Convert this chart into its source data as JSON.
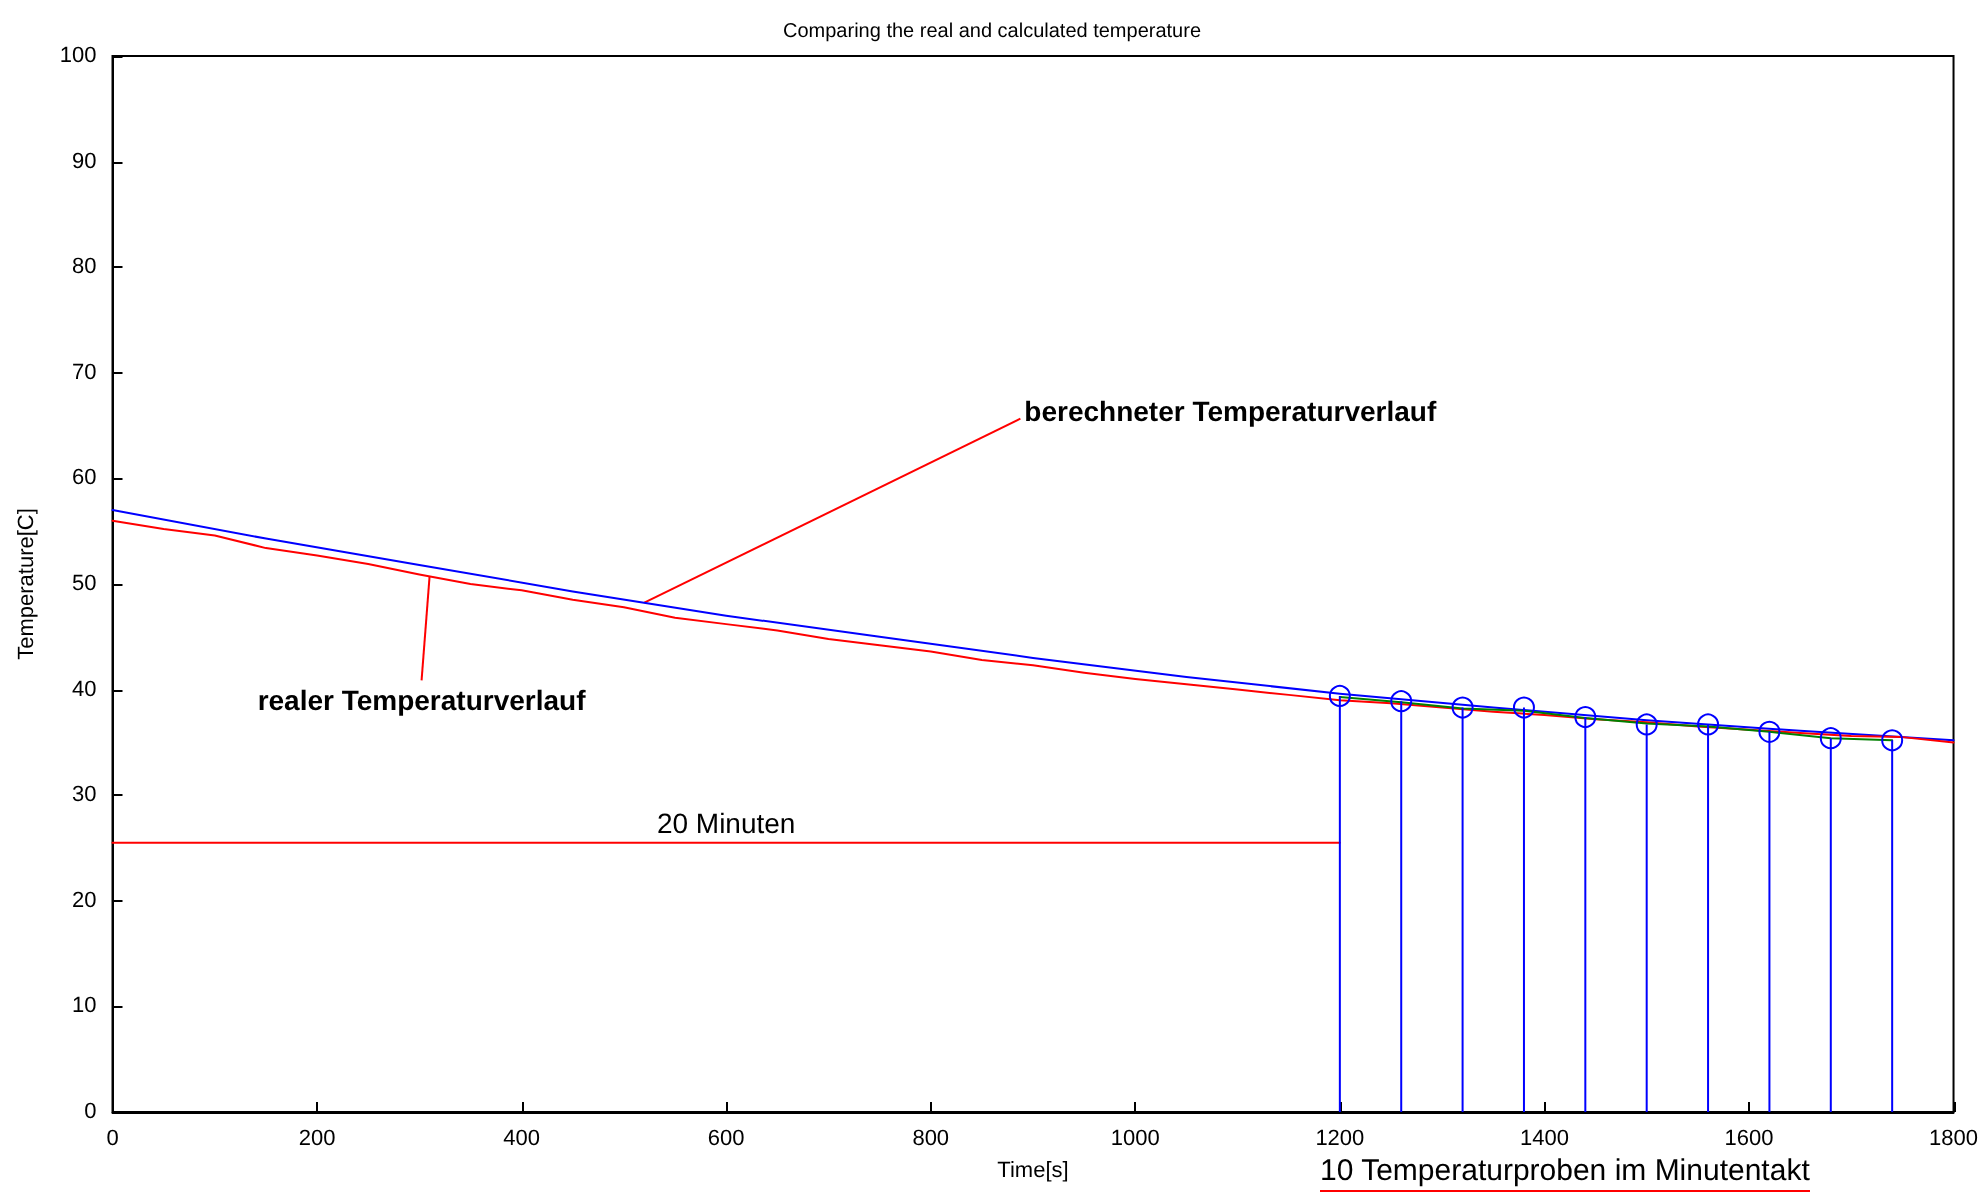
{
  "chart_data": {
    "type": "line",
    "title": "Comparing the real and calculated temperature",
    "xlabel": "Time[s]",
    "ylabel": "Temperature[C]",
    "xlim": [
      0,
      1800
    ],
    "xticks": [
      0,
      200,
      400,
      600,
      800,
      1000,
      1200,
      1400,
      1600,
      1800
    ],
    "ylim": [
      0,
      100
    ],
    "yticks": [
      0,
      10,
      20,
      30,
      40,
      50,
      60,
      70,
      80,
      90,
      100
    ],
    "grid": false,
    "legend": false,
    "marker": "none",
    "series": [
      {
        "name": "berechneter Temperaturverlauf",
        "color": "#0000ff",
        "x": [
          0,
          150,
          300,
          450,
          600,
          750,
          900,
          1050,
          1200,
          1350,
          1500,
          1650,
          1800
        ],
        "values": [
          57,
          54.3,
          51.8,
          49.3,
          47.0,
          45.0,
          43.0,
          41.2,
          39.6,
          38.3,
          37.1,
          36.1,
          35.2
        ]
      },
      {
        "name": "realer Temperaturverlauf",
        "color": "#ff0000",
        "x": [
          0,
          50,
          100,
          150,
          200,
          250,
          300,
          350,
          400,
          450,
          500,
          550,
          600,
          650,
          700,
          750,
          800,
          850,
          900,
          950,
          1000,
          1050,
          1100,
          1150,
          1200,
          1250,
          1300,
          1350,
          1400,
          1450,
          1500,
          1550,
          1600,
          1650,
          1700,
          1750,
          1800
        ],
        "values": [
          56.0,
          55.2,
          54.6,
          53.4,
          52.7,
          51.9,
          50.9,
          50.0,
          49.4,
          48.5,
          47.8,
          46.8,
          46.2,
          45.6,
          44.8,
          44.2,
          43.6,
          42.8,
          42.3,
          41.6,
          41.0,
          40.5,
          40.0,
          39.5,
          39.0,
          38.7,
          38.3,
          37.9,
          37.6,
          37.2,
          36.9,
          36.5,
          36.2,
          35.9,
          35.6,
          35.5,
          35.0
        ]
      },
      {
        "color": "#008000",
        "x": [
          1200,
          1260,
          1320,
          1380,
          1440,
          1500,
          1560,
          1620,
          1680,
          1740
        ],
        "values": [
          39.3,
          38.8,
          38.2,
          38.0,
          37.3,
          36.8,
          36.5,
          36.0,
          35.4,
          35.2
        ]
      },
      {
        "type": "lollipop",
        "color": "#0000ff",
        "marker": "circle",
        "x": [
          1200,
          1260,
          1320,
          1380,
          1440,
          1500,
          1560,
          1620,
          1680,
          1740
        ],
        "values": [
          39.4,
          38.9,
          38.3,
          38.3,
          37.4,
          36.7,
          36.7,
          36.0,
          35.4,
          35.2
        ]
      },
      {
        "name": "20 Minuten",
        "color": "#ff0000",
        "x": [
          0,
          1200
        ],
        "values": [
          25.5,
          25.5
        ]
      }
    ],
    "annotations": [
      "10 Temperaturproben im Minutentakt"
    ]
  }
}
